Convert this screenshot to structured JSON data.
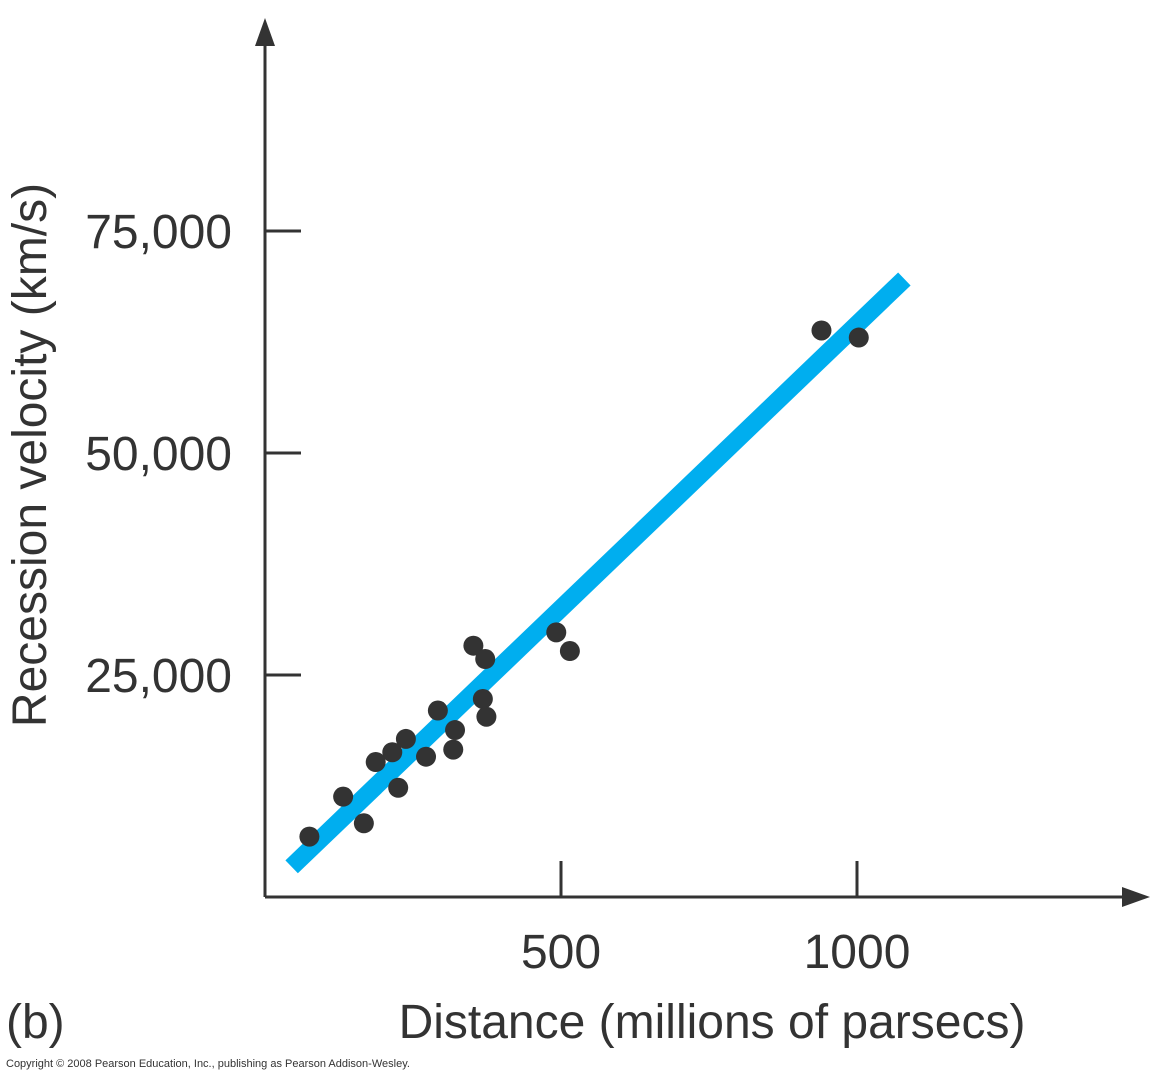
{
  "chart_data": {
    "type": "scatter",
    "panel_label": "(b)",
    "xlabel": "Distance (millions of parsecs)",
    "ylabel": "Recession velocity (km/s)",
    "xlim": [
      0,
      1500
    ],
    "ylim": [
      0,
      95000
    ],
    "x_ticks": [
      500,
      1000
    ],
    "x_tick_labels": [
      "500",
      "1000"
    ],
    "y_ticks": [
      25000,
      50000,
      75000
    ],
    "y_tick_labels": [
      "25,000",
      "50,000",
      "75,000"
    ],
    "points": [
      {
        "x": 75,
        "y": 6800
      },
      {
        "x": 132,
        "y": 11300
      },
      {
        "x": 167,
        "y": 8300
      },
      {
        "x": 187,
        "y": 15200
      },
      {
        "x": 215,
        "y": 16300
      },
      {
        "x": 225,
        "y": 12300
      },
      {
        "x": 238,
        "y": 17800
      },
      {
        "x": 272,
        "y": 15800
      },
      {
        "x": 292,
        "y": 21000
      },
      {
        "x": 318,
        "y": 16600
      },
      {
        "x": 321,
        "y": 18800
      },
      {
        "x": 352,
        "y": 28300
      },
      {
        "x": 368,
        "y": 22300
      },
      {
        "x": 372,
        "y": 26800
      },
      {
        "x": 374,
        "y": 20300
      },
      {
        "x": 492,
        "y": 29800
      },
      {
        "x": 515,
        "y": 27700
      },
      {
        "x": 940,
        "y": 63800
      },
      {
        "x": 1003,
        "y": 63000
      }
    ],
    "fit_line": {
      "x": [
        45,
        1080
      ],
      "y": [
        3400,
        69600
      ]
    },
    "colors": {
      "points": "#333333",
      "fit_line": "#00aeef",
      "axes": "#333333"
    },
    "grid": false
  },
  "copyright": "Copyright © 2008 Pearson Education, Inc., publishing as Pearson Addison-Wesley."
}
